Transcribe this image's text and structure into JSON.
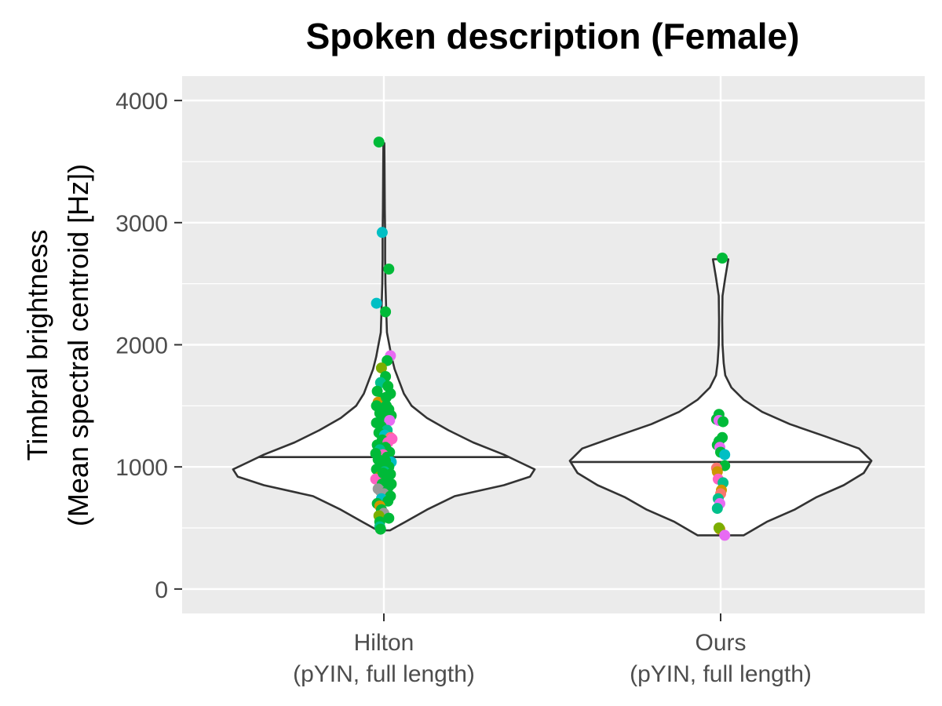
{
  "chart_data": {
    "type": "violin",
    "title": "Spoken description (Female)",
    "ylabel_line1": "Timbral brightness",
    "ylabel_line2": "(Mean spectral centroid [Hz])",
    "xlabel": "",
    "ylim": [
      -200,
      4200
    ],
    "yticks": [
      0,
      1000,
      2000,
      3000,
      4000
    ],
    "grid": true,
    "legend": "none",
    "categories": [
      {
        "line1": "Hilton",
        "line2": "(pYIN, full length)"
      },
      {
        "line1": "Ours",
        "line2": "(pYIN, full length)"
      }
    ],
    "violins": [
      {
        "median": 1080,
        "profile": [
          [
            480,
            0.04
          ],
          [
            550,
            0.14
          ],
          [
            650,
            0.28
          ],
          [
            760,
            0.46
          ],
          [
            850,
            0.78
          ],
          [
            920,
            0.95
          ],
          [
            980,
            0.98
          ],
          [
            1040,
            0.88
          ],
          [
            1100,
            0.78
          ],
          [
            1200,
            0.58
          ],
          [
            1300,
            0.42
          ],
          [
            1400,
            0.28
          ],
          [
            1500,
            0.18
          ],
          [
            1600,
            0.13
          ],
          [
            1700,
            0.1
          ],
          [
            1800,
            0.07
          ],
          [
            1900,
            0.05
          ],
          [
            2000,
            0.035
          ],
          [
            2100,
            0.02
          ],
          [
            2300,
            0.015
          ],
          [
            2500,
            0.01
          ],
          [
            2700,
            0.008
          ],
          [
            2900,
            0.008
          ],
          [
            3100,
            0.006
          ],
          [
            3300,
            0.005
          ],
          [
            3500,
            0.004
          ],
          [
            3650,
            0.003
          ]
        ]
      },
      {
        "median": 1040,
        "profile": [
          [
            440,
            0.15
          ],
          [
            550,
            0.3
          ],
          [
            650,
            0.48
          ],
          [
            750,
            0.62
          ],
          [
            850,
            0.8
          ],
          [
            950,
            0.93
          ],
          [
            1050,
            0.98
          ],
          [
            1150,
            0.9
          ],
          [
            1250,
            0.68
          ],
          [
            1350,
            0.45
          ],
          [
            1450,
            0.27
          ],
          [
            1550,
            0.15
          ],
          [
            1650,
            0.07
          ],
          [
            1750,
            0.03
          ],
          [
            1850,
            0.02
          ],
          [
            2000,
            0.012
          ],
          [
            2200,
            0.01
          ],
          [
            2400,
            0.012
          ],
          [
            2550,
            0.03
          ],
          [
            2700,
            0.05
          ]
        ]
      }
    ],
    "points": [
      {
        "x": 1,
        "y": 3660,
        "dx": -0.06,
        "c": "#00ba38"
      },
      {
        "x": 1,
        "y": 2920,
        "dx": -0.02,
        "c": "#00bfc4"
      },
      {
        "x": 1,
        "y": 2620,
        "dx": 0.06,
        "c": "#00ba38"
      },
      {
        "x": 1,
        "y": 2340,
        "dx": -0.09,
        "c": "#00bfc4"
      },
      {
        "x": 1,
        "y": 2270,
        "dx": 0.02,
        "c": "#00ba38"
      },
      {
        "x": 1,
        "y": 1910,
        "dx": 0.08,
        "c": "#e76bf3"
      },
      {
        "x": 1,
        "y": 1870,
        "dx": 0.04,
        "c": "#00ba38"
      },
      {
        "x": 1,
        "y": 1810,
        "dx": -0.03,
        "c": "#7cae00"
      },
      {
        "x": 1,
        "y": 1740,
        "dx": 0.02,
        "c": "#00ba38"
      },
      {
        "x": 1,
        "y": 1690,
        "dx": -0.04,
        "c": "#00c08b"
      },
      {
        "x": 1,
        "y": 1660,
        "dx": 0.05,
        "c": "#00ba38"
      },
      {
        "x": 1,
        "y": 1620,
        "dx": -0.08,
        "c": "#00ba38"
      },
      {
        "x": 1,
        "y": 1600,
        "dx": 0.08,
        "c": "#00ba38"
      },
      {
        "x": 1,
        "y": 1560,
        "dx": -0.01,
        "c": "#00ba38"
      },
      {
        "x": 1,
        "y": 1530,
        "dx": -0.07,
        "c": "#cd9600"
      },
      {
        "x": 1,
        "y": 1500,
        "dx": 0.03,
        "c": "#00ba38"
      },
      {
        "x": 1,
        "y": 1470,
        "dx": 0.06,
        "c": "#00ba38"
      },
      {
        "x": 1,
        "y": 1440,
        "dx": -0.05,
        "c": "#00ba38"
      },
      {
        "x": 1,
        "y": 1420,
        "dx": 0.09,
        "c": "#00ba38"
      },
      {
        "x": 1,
        "y": 1400,
        "dx": 0.0,
        "c": "#00ba38"
      },
      {
        "x": 1,
        "y": 1380,
        "dx": 0.07,
        "c": "#e76bf3"
      },
      {
        "x": 1,
        "y": 1360,
        "dx": -0.09,
        "c": "#00ba38"
      },
      {
        "x": 1,
        "y": 1330,
        "dx": -0.03,
        "c": "#00ba38"
      },
      {
        "x": 1,
        "y": 1300,
        "dx": 0.04,
        "c": "#00c08b"
      },
      {
        "x": 1,
        "y": 1280,
        "dx": -0.06,
        "c": "#00ba38"
      },
      {
        "x": 1,
        "y": 1260,
        "dx": 0.01,
        "c": "#00bfc4"
      },
      {
        "x": 1,
        "y": 1240,
        "dx": 0.08,
        "c": "#f8766d"
      },
      {
        "x": 1,
        "y": 1220,
        "dx": -0.02,
        "c": "#00ba38"
      },
      {
        "x": 1,
        "y": 1200,
        "dx": 0.05,
        "c": "#ff61c3"
      },
      {
        "x": 1,
        "y": 1180,
        "dx": -0.08,
        "c": "#00ba38"
      },
      {
        "x": 1,
        "y": 1160,
        "dx": 0.02,
        "c": "#00ba38"
      },
      {
        "x": 1,
        "y": 1140,
        "dx": -0.05,
        "c": "#00c08b"
      },
      {
        "x": 1,
        "y": 1120,
        "dx": 0.07,
        "c": "#00ba38"
      },
      {
        "x": 1,
        "y": 1100,
        "dx": -0.01,
        "c": "#ff61c3"
      },
      {
        "x": 1,
        "y": 1080,
        "dx": 0.04,
        "c": "#00ba38"
      },
      {
        "x": 1,
        "y": 1060,
        "dx": -0.07,
        "c": "#00ba38"
      },
      {
        "x": 1,
        "y": 1040,
        "dx": 0.09,
        "c": "#00bfc4"
      },
      {
        "x": 1,
        "y": 1020,
        "dx": -0.03,
        "c": "#00ba38"
      },
      {
        "x": 1,
        "y": 1000,
        "dx": 0.06,
        "c": "#00ba38"
      },
      {
        "x": 1,
        "y": 980,
        "dx": -0.09,
        "c": "#00ba38"
      },
      {
        "x": 1,
        "y": 960,
        "dx": 0.01,
        "c": "#00c08b"
      },
      {
        "x": 1,
        "y": 940,
        "dx": 0.08,
        "c": "#00ba38"
      },
      {
        "x": 1,
        "y": 920,
        "dx": -0.05,
        "c": "#7cae00"
      },
      {
        "x": 1,
        "y": 900,
        "dx": -0.1,
        "c": "#ff61c3"
      },
      {
        "x": 1,
        "y": 880,
        "dx": 0.03,
        "c": "#00ba38"
      },
      {
        "x": 1,
        "y": 860,
        "dx": -0.02,
        "c": "#00ba38"
      },
      {
        "x": 1,
        "y": 840,
        "dx": 0.06,
        "c": "#00ba38"
      },
      {
        "x": 1,
        "y": 820,
        "dx": -0.07,
        "c": "#999999"
      },
      {
        "x": 1,
        "y": 800,
        "dx": -0.04,
        "c": "#999999"
      },
      {
        "x": 1,
        "y": 800,
        "dx": 0.04,
        "c": "#00ba38"
      },
      {
        "x": 1,
        "y": 780,
        "dx": 0.0,
        "c": "#999999"
      },
      {
        "x": 1,
        "y": 760,
        "dx": 0.08,
        "c": "#00ba38"
      },
      {
        "x": 1,
        "y": 740,
        "dx": -0.03,
        "c": "#00bfc4"
      },
      {
        "x": 1,
        "y": 720,
        "dx": 0.05,
        "c": "#00ba38"
      },
      {
        "x": 1,
        "y": 700,
        "dx": -0.08,
        "c": "#00ba38"
      },
      {
        "x": 1,
        "y": 680,
        "dx": -0.05,
        "c": "#cd9600"
      },
      {
        "x": 1,
        "y": 650,
        "dx": -0.03,
        "c": "#00ba38"
      },
      {
        "x": 1,
        "y": 620,
        "dx": 0.0,
        "c": "#999999"
      },
      {
        "x": 1,
        "y": 600,
        "dx": -0.06,
        "c": "#7cae00"
      },
      {
        "x": 1,
        "y": 580,
        "dx": 0.06,
        "c": "#00ba38"
      },
      {
        "x": 1,
        "y": 550,
        "dx": -0.05,
        "c": "#00ba38"
      },
      {
        "x": 1,
        "y": 510,
        "dx": -0.05,
        "c": "#00c08b"
      },
      {
        "x": 1,
        "y": 490,
        "dx": -0.04,
        "c": "#00ba38"
      },
      {
        "x": 1,
        "y": 1500,
        "dx": -0.09,
        "c": "#00ba38"
      },
      {
        "x": 1,
        "y": 1570,
        "dx": 0.03,
        "c": "#00ba38"
      },
      {
        "x": 1,
        "y": 1230,
        "dx": 0.1,
        "c": "#ff61c3"
      },
      {
        "x": 1,
        "y": 1050,
        "dx": 0.02,
        "c": "#00ba38"
      },
      {
        "x": 1,
        "y": 950,
        "dx": -0.01,
        "c": "#00ba38"
      },
      {
        "x": 1,
        "y": 860,
        "dx": 0.09,
        "c": "#00ba38"
      },
      {
        "x": 1,
        "y": 1110,
        "dx": -0.1,
        "c": "#00ba38"
      },
      {
        "x": 2,
        "y": 2710,
        "dx": 0.02,
        "c": "#00ba38"
      },
      {
        "x": 2,
        "y": 1430,
        "dx": -0.02,
        "c": "#00ba38"
      },
      {
        "x": 2,
        "y": 1390,
        "dx": -0.05,
        "c": "#00ba38"
      },
      {
        "x": 2,
        "y": 1380,
        "dx": -0.02,
        "c": "#e76bf3"
      },
      {
        "x": 2,
        "y": 1370,
        "dx": 0.03,
        "c": "#00ba38"
      },
      {
        "x": 2,
        "y": 1240,
        "dx": 0.02,
        "c": "#00ba38"
      },
      {
        "x": 2,
        "y": 1210,
        "dx": -0.02,
        "c": "#00ba38"
      },
      {
        "x": 2,
        "y": 1180,
        "dx": -0.04,
        "c": "#00ba38"
      },
      {
        "x": 2,
        "y": 1160,
        "dx": -0.01,
        "c": "#e76bf3"
      },
      {
        "x": 2,
        "y": 1120,
        "dx": 0.0,
        "c": "#00ba38"
      },
      {
        "x": 2,
        "y": 1100,
        "dx": 0.05,
        "c": "#00bfc4"
      },
      {
        "x": 2,
        "y": 1010,
        "dx": 0.05,
        "c": "#00ba38"
      },
      {
        "x": 2,
        "y": 990,
        "dx": -0.05,
        "c": "#f8766d"
      },
      {
        "x": 2,
        "y": 960,
        "dx": -0.04,
        "c": "#cd9600"
      },
      {
        "x": 2,
        "y": 900,
        "dx": -0.03,
        "c": "#ff61c3"
      },
      {
        "x": 2,
        "y": 870,
        "dx": 0.03,
        "c": "#00c08b"
      },
      {
        "x": 2,
        "y": 810,
        "dx": 0.01,
        "c": "#cd9600"
      },
      {
        "x": 2,
        "y": 780,
        "dx": 0.0,
        "c": "#f8766d"
      },
      {
        "x": 2,
        "y": 740,
        "dx": -0.03,
        "c": "#00c08b"
      },
      {
        "x": 2,
        "y": 700,
        "dx": -0.01,
        "c": "#e76bf3"
      },
      {
        "x": 2,
        "y": 660,
        "dx": -0.04,
        "c": "#00c08b"
      },
      {
        "x": 2,
        "y": 490,
        "dx": -0.01,
        "c": "#cd9600"
      },
      {
        "x": 2,
        "y": 500,
        "dx": -0.02,
        "c": "#7cae00"
      },
      {
        "x": 2,
        "y": 440,
        "dx": 0.05,
        "c": "#e76bf3"
      }
    ]
  }
}
